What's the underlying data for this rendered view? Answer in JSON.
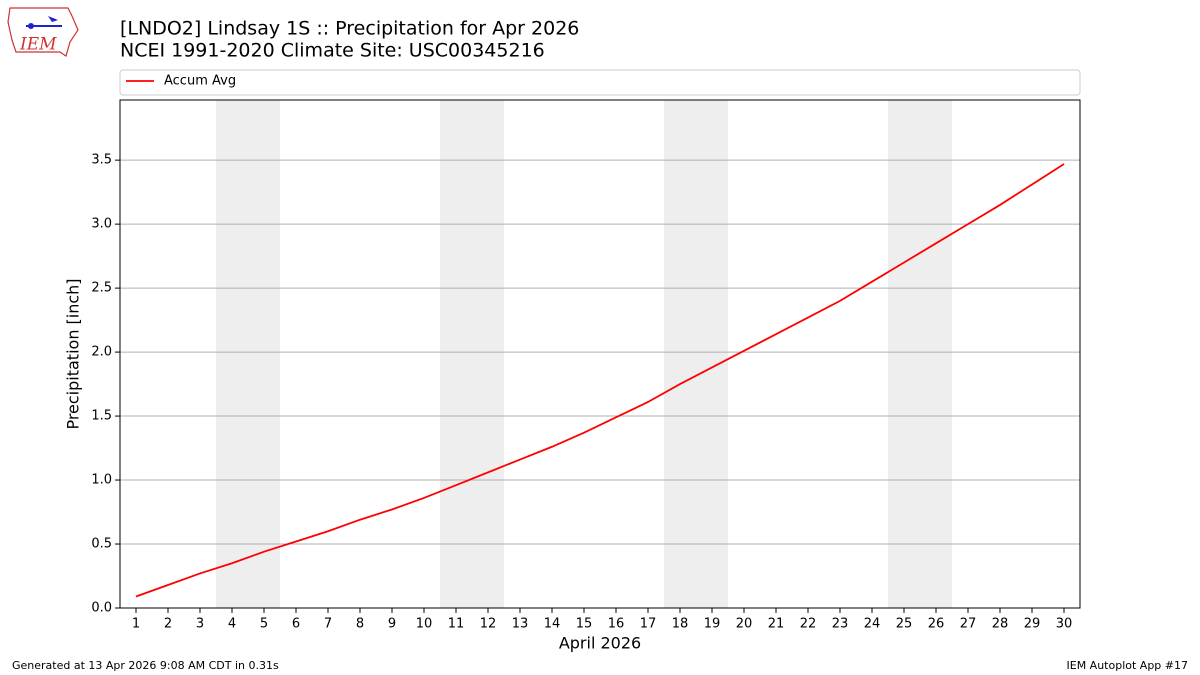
{
  "logo_text": "IEM",
  "chart_data": {
    "type": "line",
    "title": "[LNDO2] Lindsay 1S :: Precipitation for Apr 2026",
    "subtitle": "NCEI 1991-2020 Climate Site: USC00345216",
    "xlabel": "April 2026",
    "ylabel": "Precipitation [inch]",
    "x": [
      1,
      2,
      3,
      4,
      5,
      6,
      7,
      8,
      9,
      10,
      11,
      12,
      13,
      14,
      15,
      16,
      17,
      18,
      19,
      20,
      21,
      22,
      23,
      24,
      25,
      26,
      27,
      28,
      29,
      30
    ],
    "series": [
      {
        "name": "Accum Avg",
        "color": "#ff0000",
        "values": [
          0.09,
          0.18,
          0.27,
          0.35,
          0.44,
          0.52,
          0.6,
          0.69,
          0.77,
          0.86,
          0.96,
          1.06,
          1.16,
          1.26,
          1.37,
          1.49,
          1.61,
          1.75,
          1.88,
          2.01,
          2.14,
          2.27,
          2.4,
          2.55,
          2.7,
          2.85,
          3.0,
          3.15,
          3.31,
          3.47
        ]
      }
    ],
    "xlim": [
      0.5,
      30.5
    ],
    "ylim": [
      0,
      3.97
    ],
    "xticks": [
      1,
      2,
      3,
      4,
      5,
      6,
      7,
      8,
      9,
      10,
      11,
      12,
      13,
      14,
      15,
      16,
      17,
      18,
      19,
      20,
      21,
      22,
      23,
      24,
      25,
      26,
      27,
      28,
      29,
      30
    ],
    "yticks": [
      {
        "value": 0,
        "label": "0.0"
      },
      0.5,
      {
        "value": 1,
        "label": "1.0"
      },
      1.5,
      {
        "value": 2,
        "label": "2.0"
      },
      2.5,
      {
        "value": 3,
        "label": "3.0"
      },
      3.5
    ],
    "grid": true,
    "weekend_spans": [
      [
        3.5,
        5.5
      ],
      [
        10.5,
        12.5
      ],
      [
        17.5,
        19.5
      ],
      [
        24.5,
        26.5
      ]
    ],
    "span_color": "#eeeeee",
    "legend": "top",
    "footer_left": "Generated at 13 Apr 2026 9:08 AM CDT in 0.31s",
    "footer_right": "IEM Autoplot App #17"
  }
}
